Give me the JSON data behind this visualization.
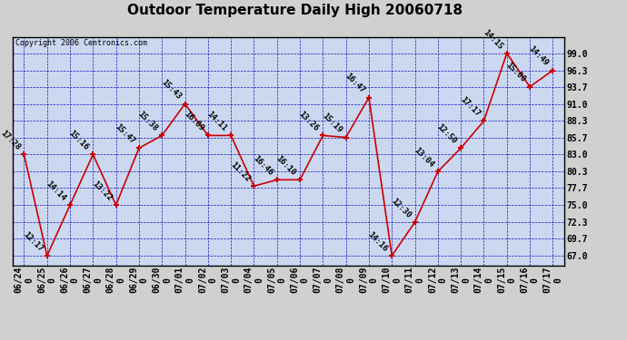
{
  "title": "Outdoor Temperature Daily High 20060718",
  "copyright": "Copyright 2006 Centronics.com",
  "dates": [
    "06/24",
    "06/25",
    "06/26",
    "06/27",
    "06/28",
    "06/29",
    "06/30",
    "07/01",
    "07/02",
    "07/03",
    "07/04",
    "07/05",
    "07/06",
    "07/07",
    "07/08",
    "07/09",
    "07/10",
    "07/11",
    "07/12",
    "07/13",
    "07/14",
    "07/15",
    "07/16",
    "07/17"
  ],
  "temps": [
    83.0,
    67.0,
    75.0,
    83.0,
    75.0,
    84.0,
    86.0,
    91.0,
    86.0,
    86.0,
    78.0,
    79.0,
    79.0,
    86.0,
    85.7,
    92.0,
    67.0,
    72.3,
    80.3,
    84.0,
    88.3,
    99.0,
    93.7,
    96.3
  ],
  "labels": [
    "17:28",
    "12:17",
    "14:14",
    "15:16",
    "13:22",
    "15:47",
    "15:38",
    "15:43",
    "16:09",
    "14:11",
    "11:22",
    "16:46",
    "16:10",
    "13:26",
    "15:19",
    "16:47",
    "14:16",
    "12:30",
    "13:04",
    "12:50",
    "17:17",
    "14:15",
    "15:00",
    "14:49"
  ],
  "line_color": "#cc0000",
  "marker_color": "#cc0000",
  "grid_color": "#0000bb",
  "background_color": "#d0d0d0",
  "plot_bg_color": "#ccd8f0",
  "ytick_vals": [
    67.0,
    69.7,
    72.3,
    75.0,
    77.7,
    80.3,
    83.0,
    85.7,
    88.3,
    91.0,
    93.7,
    96.3,
    99.0
  ],
  "ytick_labels": [
    "67.0",
    "69.7",
    "72.3",
    "75.0",
    "77.7",
    "80.3",
    "83.0",
    "85.7",
    "88.3",
    "91.0",
    "93.7",
    "96.3",
    "99.0"
  ],
  "ylim": [
    65.5,
    101.5
  ],
  "title_fontsize": 11,
  "tick_fontsize": 7,
  "label_fontsize": 6.5,
  "copyright_fontsize": 6
}
